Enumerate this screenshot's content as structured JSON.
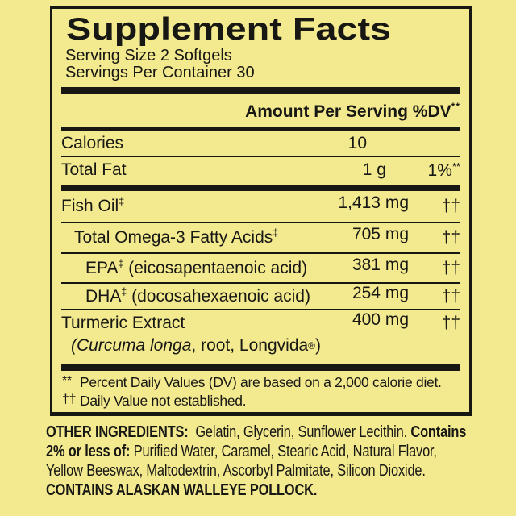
{
  "colors": {
    "background": "#f3e98e",
    "ink": "#171714"
  },
  "label": {
    "title": "Supplement Facts",
    "serving_size": "Serving Size 2 Softgels",
    "servings_per_container": "Servings Per Container 30",
    "column_header": {
      "amount": "Amount Per Serving",
      "dv": "%DV",
      "dv_sup": "**"
    },
    "rows": [
      {
        "name": "Calories",
        "amount": "10",
        "dv": ""
      },
      {
        "name": "Total Fat",
        "amount": "1 g",
        "dv": "1%",
        "dv_sup": "**"
      },
      {
        "name": "Fish Oil",
        "name_sup": "‡",
        "amount": "1,413 mg",
        "dv": "††"
      },
      {
        "name": "Total Omega-3 Fatty Acids",
        "name_sup": "‡",
        "amount": "705 mg",
        "dv": "††"
      },
      {
        "name": "EPA",
        "name_sup": "‡",
        "name_rest": " (eicosapentaenoic acid)",
        "amount": "381 mg",
        "dv": "††"
      },
      {
        "name": "DHA",
        "name_sup": "‡",
        "name_rest": " (docosahexaenoic acid)",
        "amount": "254 mg",
        "dv": "††"
      },
      {
        "name": "Turmeric Extract",
        "amount": "400 mg",
        "dv": "††",
        "sub_italic": "(Curcuma longa",
        "sub_rest": ", root, Longvida",
        "sub_sup": "®",
        "sub_close": ")"
      }
    ],
    "footnotes": [
      {
        "marker": "**",
        "text": "Percent Daily Values (DV) are based on a 2,000 calorie diet."
      },
      {
        "marker": "††",
        "text": "Daily Value not established."
      }
    ]
  },
  "other_ingredients": {
    "line1_bold": "OTHER INGREDIENTS:",
    "line1_text": "  Gelatin, Glycerin, Sunflower Lecithin. ",
    "line1_bold2": "Contains",
    "line2_bold": "2% or less of:",
    "line2_text": " Purified Water, Caramel, Stearic Acid, Natural Flavor,",
    "line3_text": "Yellow Beeswax, Maltodextrin, Ascorbyl Palmitate, Silicon Dioxide.",
    "line4_bold": "CONTAINS ALASKAN WALLEYE POLLOCK."
  }
}
